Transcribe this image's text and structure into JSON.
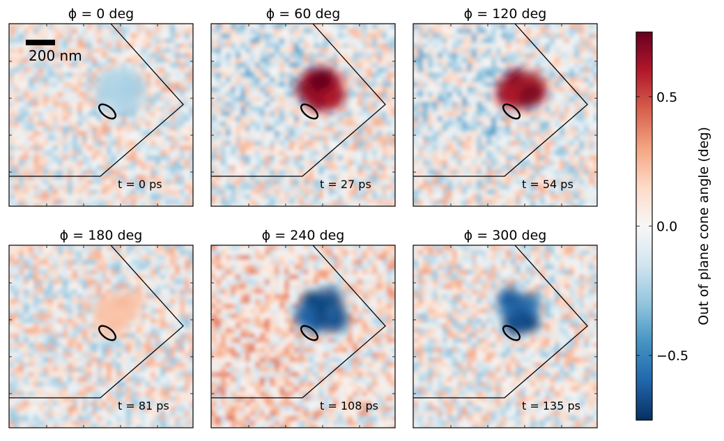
{
  "chart_data": {
    "type": "heatmap",
    "panels": [
      {
        "title": "ϕ =  0 deg",
        "time": "t = 0 ps",
        "blob_sign": -1,
        "blob_strength": 0.25
      },
      {
        "title": "ϕ =  60 deg",
        "time": "t = 27 ps",
        "blob_sign": 1,
        "blob_strength": 0.75
      },
      {
        "title": "ϕ =  120 deg",
        "time": "t = 54 ps",
        "blob_sign": 1,
        "blob_strength": 0.7
      },
      {
        "title": "ϕ =  180 deg",
        "time": "t = 81 ps",
        "blob_sign": 1,
        "blob_strength": 0.25
      },
      {
        "title": "ϕ =  240 deg",
        "time": "t = 108 ps",
        "blob_sign": -1,
        "blob_strength": 0.75
      },
      {
        "title": "ϕ =  300 deg",
        "time": "t = 135 ps",
        "blob_sign": -1,
        "blob_strength": 0.7
      }
    ],
    "scale_bar_label": "200 nm",
    "colorbar": {
      "label": "Out of plane cone angle (deg)",
      "range": [
        -0.75,
        0.75
      ],
      "ticks": [
        {
          "value": 0.5,
          "label": "0.5"
        },
        {
          "value": 0.0,
          "label": "0.0"
        },
        {
          "value": -0.5,
          "label": "−0.5"
        }
      ],
      "colormap": "RdBu_r"
    }
  }
}
